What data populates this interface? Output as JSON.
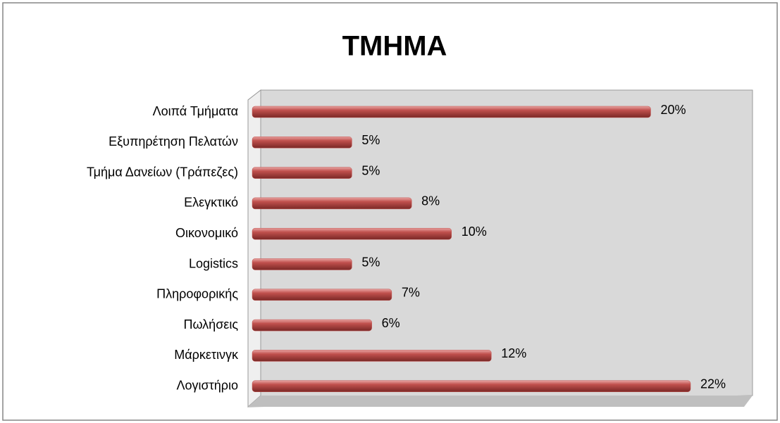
{
  "chart_data": {
    "type": "bar",
    "orientation": "horizontal",
    "title": "ΤΜΗΜΑ",
    "categories": [
      "Λοιπά Τμήματα",
      "Εξυπηρέτηση Πελατών",
      "Τμήμα Δανείων (Τράπεζες)",
      "Ελεγκτικό",
      "Οικονομικό",
      "Logistics",
      "Πληροφορικής",
      "Πωλήσεις",
      "Μάρκετινγκ",
      "Λογιστήριο"
    ],
    "values": [
      20,
      5,
      5,
      8,
      10,
      5,
      7,
      6,
      12,
      22
    ],
    "value_labels": [
      "20%",
      "5%",
      "5%",
      "8%",
      "10%",
      "5%",
      "7%",
      "6%",
      "12%",
      "22%"
    ],
    "color": "#c0504d"
  }
}
